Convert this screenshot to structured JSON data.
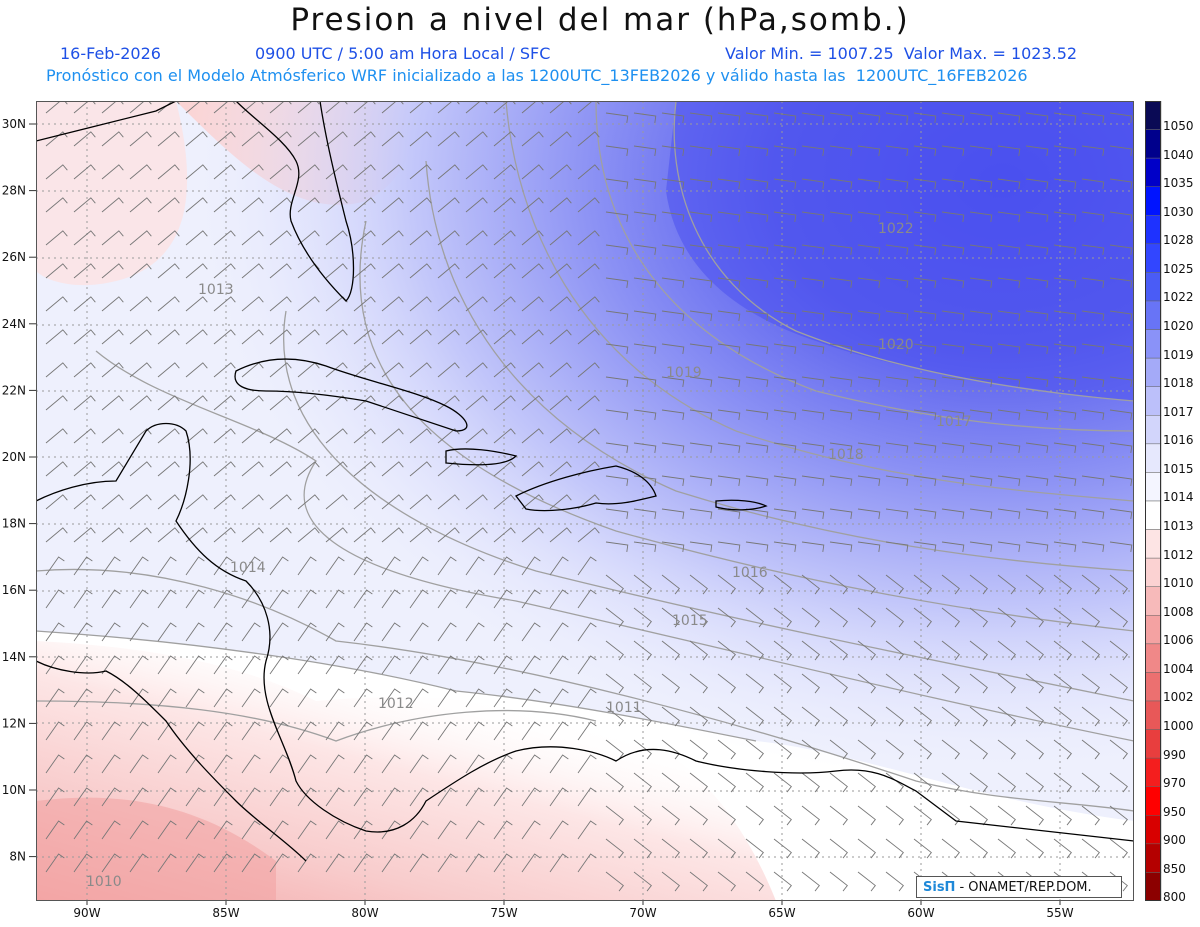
{
  "header": {
    "title": "Presion a nivel del mar (hPa,somb.)",
    "date": "16-Feb-2026",
    "time_info": "0900 UTC / 5:00 am Hora Local / SFC",
    "minmax": "Valor Min. = 1007.25  Valor Max. = 1023.52",
    "model_info": "Pronóstico con el Modelo Atmósferico WRF inicializado a las 1200UTC_13FEB2026 y válido hasta las  1200UTC_16FEB2026"
  },
  "map": {
    "lon_labels": [
      "90W",
      "85W",
      "80W",
      "75W",
      "70W",
      "65W",
      "60W",
      "55W"
    ],
    "lon_values": [
      -90,
      -85,
      -80,
      -75,
      -70,
      -65,
      -60,
      -55
    ],
    "lat_labels": [
      "30N",
      "28N",
      "26N",
      "24N",
      "22N",
      "20N",
      "18N",
      "16N",
      "14N",
      "12N",
      "10N",
      "8N"
    ],
    "lat_values": [
      30,
      28,
      26,
      24,
      22,
      20,
      18,
      16,
      14,
      12,
      10,
      8
    ],
    "contour_labels": [
      "1022",
      "1020",
      "1019",
      "1018",
      "1017",
      "1016",
      "1015",
      "1014",
      "1013",
      "1012",
      "1011",
      "1010"
    ],
    "colors": {
      "high": "#4848ee",
      "mid": "#d8dcff",
      "low": "#f7c7c7",
      "coast": "#000000",
      "contour": "#a0a0a0"
    }
  },
  "legend": {
    "levels": [
      "1050",
      "1040",
      "1035",
      "1030",
      "1028",
      "1025",
      "1022",
      "1020",
      "1019",
      "1018",
      "1017",
      "1016",
      "1015",
      "1014",
      "1013",
      "1012",
      "1010",
      "1008",
      "1006",
      "1004",
      "1002",
      "1000",
      "990",
      "970",
      "950",
      "900",
      "850",
      "800"
    ],
    "colors": [
      "#0a0a55",
      "#00008c",
      "#0000c8",
      "#0014ff",
      "#1e32ff",
      "#3246ff",
      "#4a5cf6",
      "#6874f6",
      "#8a92f8",
      "#a4aaf8",
      "#bcc0fa",
      "#d2d5fb",
      "#e6e8fd",
      "#f4f5ff",
      "#ffffff",
      "#fde4e4",
      "#fbd2d2",
      "#f7baba",
      "#f4a2a2",
      "#f08888",
      "#ec7070",
      "#e85858",
      "#e83e3e",
      "#f41e1e",
      "#ff0000",
      "#d80000",
      "#b40000",
      "#8c0000"
    ]
  },
  "credit": {
    "brand": "SisΠ",
    "text": "- ONAMET/REP.DOM."
  }
}
